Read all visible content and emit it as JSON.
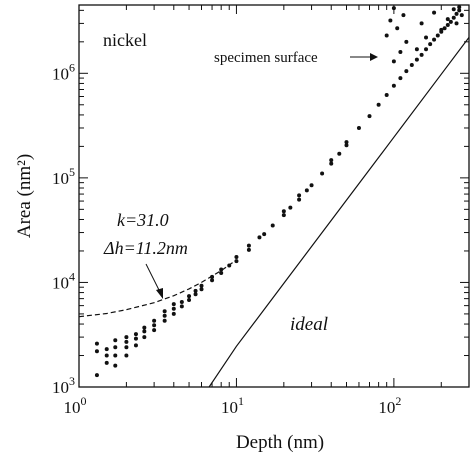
{
  "chart_data": {
    "type": "scatter",
    "xlabel": "Depth (nm)",
    "ylabel": "Area (nm²)",
    "xscale": "log",
    "yscale": "log",
    "xlim": [
      1,
      300
    ],
    "ylim": [
      1000,
      4500000
    ],
    "grid": false,
    "x_ticks": [
      {
        "value": 1,
        "base": "10",
        "exp": "0"
      },
      {
        "value": 10,
        "base": "10",
        "exp": "1"
      },
      {
        "value": 100,
        "base": "10",
        "exp": "2"
      }
    ],
    "y_ticks": [
      {
        "value": 1000,
        "base": "10",
        "exp": "3"
      },
      {
        "value": 10000,
        "base": "10",
        "exp": "4"
      },
      {
        "value": 100000,
        "base": "10",
        "exp": "5"
      },
      {
        "value": 1000000,
        "base": "10",
        "exp": "6"
      }
    ],
    "annotations": {
      "material": "nickel",
      "surface": "specimen surface",
      "fit_k": "k=31.0",
      "fit_dh": "Δh=11.2nm",
      "ideal": "ideal"
    },
    "series": [
      {
        "style": "line-solid",
        "x": [
          6.7,
          10,
          20,
          50,
          100,
          200,
          300
        ],
        "y": [
          1000,
          2450,
          9800,
          61250,
          245000,
          980000,
          2205000
        ]
      },
      {
        "style": "line-dashed",
        "x": [
          1,
          1.5,
          2,
          3,
          4,
          5,
          6,
          8,
          10
        ],
        "y": [
          4700,
          5050,
          5480,
          6400,
          7470,
          8670,
          10000,
          12990,
          16400
        ]
      },
      {
        "style": "points",
        "x": [
          1.3,
          1.3,
          1.3,
          1.5,
          1.5,
          1.5,
          1.7,
          1.7,
          1.7,
          1.7,
          2,
          2,
          2,
          2,
          2.3,
          2.3,
          2.3,
          2.6,
          2.6,
          2.6,
          3,
          3,
          3,
          3.5,
          3.5,
          3.5,
          4,
          4,
          4,
          4.5,
          4.5,
          5,
          5,
          5.5,
          5.5,
          6,
          6,
          7,
          7,
          8,
          8,
          9,
          10,
          10,
          12,
          12,
          14,
          15,
          17,
          20,
          20,
          22,
          25,
          25,
          28,
          30,
          35,
          40,
          40,
          45,
          50,
          50,
          60,
          70,
          80,
          90,
          100,
          110,
          120,
          130,
          140,
          150,
          160,
          170,
          180,
          190,
          200,
          210,
          220,
          230,
          240,
          250,
          260,
          90,
          95,
          100,
          100,
          105,
          110,
          115,
          120,
          140,
          150,
          160,
          180,
          200,
          220,
          240,
          250,
          260,
          270
        ],
        "y": [
          1300,
          2200,
          2600,
          1700,
          2000,
          2300,
          1600,
          2000,
          2400,
          2800,
          2000,
          2400,
          2700,
          3000,
          2500,
          2900,
          3200,
          3000,
          3400,
          3700,
          3500,
          3900,
          4300,
          4300,
          4800,
          5300,
          5000,
          5600,
          6200,
          5900,
          6500,
          6800,
          7400,
          7700,
          8300,
          8600,
          9300,
          10500,
          11300,
          12300,
          13300,
          14500,
          16000,
          17500,
          20500,
          22500,
          27000,
          29000,
          35000,
          44000,
          48000,
          52000,
          62000,
          68000,
          76000,
          85000,
          110000,
          137000,
          148000,
          170000,
          205000,
          220000,
          300000,
          390000,
          500000,
          620000,
          760000,
          900000,
          1050000,
          1200000,
          1350000,
          1500000,
          1700000,
          1900000,
          2100000,
          2300000,
          2500000,
          2700000,
          2900000,
          3100000,
          3400000,
          3700000,
          4000000,
          2300000,
          3200000,
          1300000,
          4200000,
          2700000,
          1600000,
          3600000,
          2000000,
          1700000,
          3000000,
          2200000,
          3800000,
          2600000,
          3300000,
          4100000,
          3000000,
          4300000,
          3600000
        ]
      }
    ]
  }
}
